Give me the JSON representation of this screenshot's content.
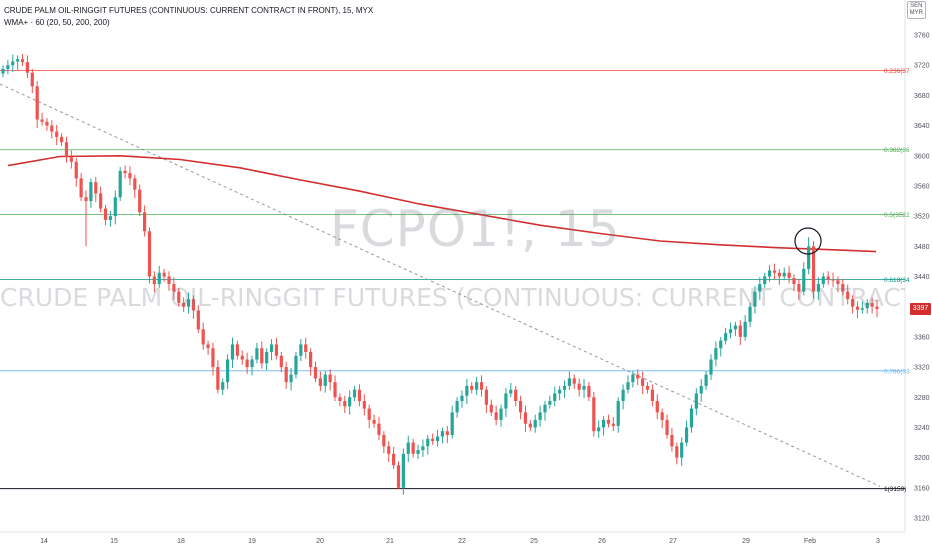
{
  "header": {
    "title": "CRUDE PALM OIL-RINGGIT FUTURES (CONTINUOUS: CURRENT CONTRACT IN FRONT), 15, MYX",
    "indicator": "WMA+ · 60 (20, 50, 200, 200)",
    "currency_top": "SEN",
    "currency_bottom": "MYR"
  },
  "watermark": {
    "symbol": "FCPO1!, 15",
    "description": "CRUDE PALM OIL-RINGGIT FUTURES (CONTINUOUS: CURRENT CONTRACT IN FRONT)"
  },
  "colors": {
    "up": "#26a69a",
    "down": "#ef5350",
    "wma": "#d32f2f",
    "trendline": "#9598a1",
    "axis_text": "#50535e"
  },
  "chart_data": {
    "type": "candlestick",
    "ylim": [
      3105,
      3790
    ],
    "yticks": [
      3760,
      3720,
      3680,
      3640,
      3600,
      3560,
      3520,
      3480,
      3440,
      3400,
      3360,
      3320,
      3280,
      3240,
      3200,
      3160,
      3120
    ],
    "x_tick_labels": [
      "14",
      "15",
      "18",
      "19",
      "20",
      "21",
      "22",
      "25",
      "26",
      "27",
      "29",
      "Feb",
      "3"
    ],
    "last_price": "3397",
    "fib_levels": [
      {
        "ratio": "0.236",
        "label": "0.236(37",
        "price": 3713,
        "color": "#f44336"
      },
      {
        "ratio": "0.382",
        "label": "0.382(36",
        "price": 3608,
        "color": "#4caf50"
      },
      {
        "ratio": "0.5",
        "label": "0.5(3522",
        "price": 3522,
        "color": "#4caf50"
      },
      {
        "ratio": "0.618",
        "label": "0.618(34",
        "price": 3436,
        "color": "#009688"
      },
      {
        "ratio": "0.786",
        "label": "0.786(33",
        "price": 3315,
        "color": "#64b5f6"
      },
      {
        "ratio": "1",
        "label": "1(3159)",
        "price": 3159,
        "color": "#131722"
      }
    ],
    "wma_200": [
      [
        8,
        3587
      ],
      [
        60,
        3599
      ],
      [
        120,
        3600
      ],
      [
        180,
        3595
      ],
      [
        240,
        3584
      ],
      [
        300,
        3568
      ],
      [
        360,
        3553
      ],
      [
        420,
        3536
      ],
      [
        480,
        3522
      ],
      [
        540,
        3508
      ],
      [
        600,
        3497
      ],
      [
        660,
        3487
      ],
      [
        720,
        3482
      ],
      [
        780,
        3478
      ],
      [
        840,
        3475
      ],
      [
        876,
        3473
      ]
    ],
    "trendline": {
      "from": [
        0,
        3695
      ],
      "to": [
        880,
        3162
      ]
    },
    "closes": [
      3715,
      3720,
      3725,
      3728,
      3724,
      3710,
      3692,
      3648,
      3645,
      3640,
      3632,
      3625,
      3618,
      3598,
      3592,
      3570,
      3545,
      3540,
      3565,
      3550,
      3530,
      3515,
      3520,
      3545,
      3580,
      3577,
      3570,
      3555,
      3525,
      3500,
      3440,
      3430,
      3445,
      3440,
      3430,
      3420,
      3405,
      3400,
      3410,
      3395,
      3370,
      3350,
      3345,
      3320,
      3290,
      3300,
      3330,
      3350,
      3335,
      3330,
      3320,
      3330,
      3345,
      3325,
      3340,
      3350,
      3335,
      3320,
      3300,
      3310,
      3335,
      3350,
      3340,
      3320,
      3305,
      3295,
      3310,
      3300,
      3280,
      3275,
      3268,
      3280,
      3290,
      3275,
      3265,
      3250,
      3245,
      3230,
      3215,
      3205,
      3190,
      3160,
      3205,
      3220,
      3205,
      3210,
      3215,
      3225,
      3222,
      3228,
      3235,
      3230,
      3260,
      3275,
      3282,
      3295,
      3290,
      3300,
      3290,
      3270,
      3260,
      3250,
      3265,
      3285,
      3290,
      3275,
      3260,
      3245,
      3240,
      3250,
      3260,
      3270,
      3275,
      3285,
      3290,
      3295,
      3305,
      3298,
      3290,
      3295,
      3280,
      3235,
      3240,
      3250,
      3245,
      3242,
      3275,
      3290,
      3300,
      3310,
      3305,
      3295,
      3290,
      3275,
      3260,
      3250,
      3230,
      3215,
      3200,
      3220,
      3240,
      3265,
      3285,
      3295,
      3310,
      3330,
      3345,
      3355,
      3365,
      3370,
      3375,
      3360,
      3380,
      3400,
      3420,
      3430,
      3440,
      3448,
      3445,
      3440,
      3445,
      3438,
      3430,
      3420,
      3450,
      3480,
      3420,
      3430,
      3440,
      3436,
      3435,
      3430,
      3420,
      3410,
      3400,
      3396,
      3398,
      3405,
      3400,
      3397
    ]
  }
}
